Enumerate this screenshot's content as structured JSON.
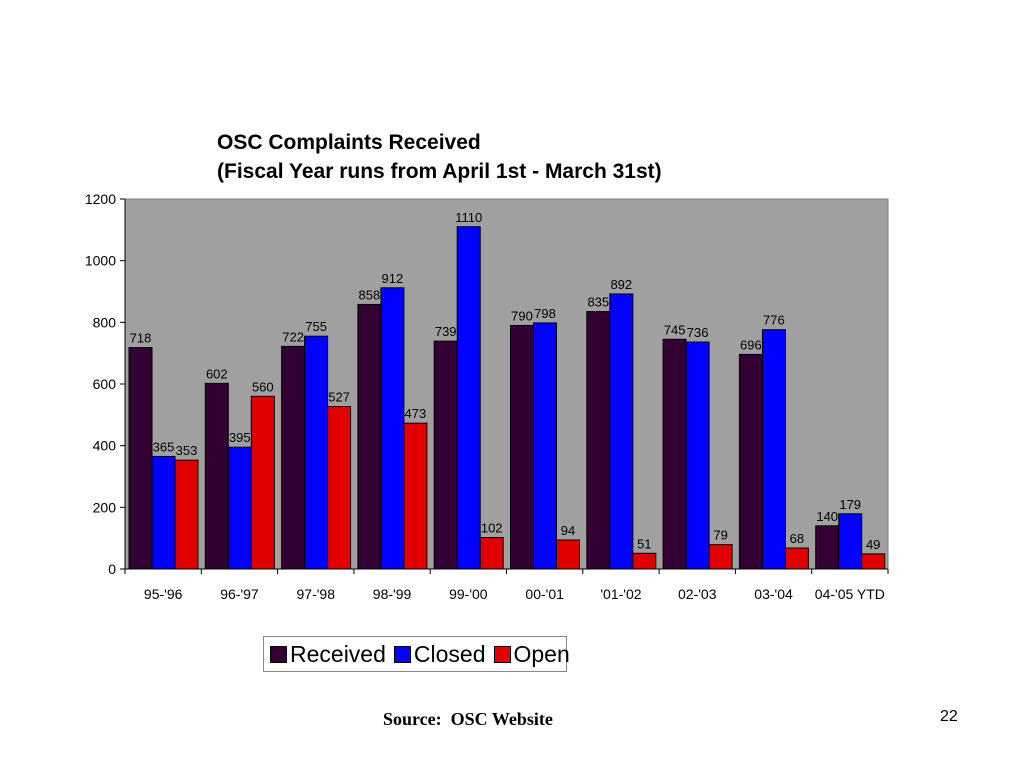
{
  "slide": {
    "title_line1": "OSC Complaints Received",
    "title_line2": "(Fiscal Year runs from April 1st - March 31st)",
    "source": "Source:  OSC Website",
    "page_number": "22"
  },
  "chart_data": {
    "type": "bar",
    "title": "",
    "xlabel": "",
    "ylabel": "",
    "ylim": [
      0,
      1200
    ],
    "yticks": [
      0,
      200,
      400,
      600,
      800,
      1000,
      1200
    ],
    "grid": false,
    "legend_position": "bottom",
    "categories": [
      "95-'96",
      "96-'97",
      "97-'98",
      "98-'99",
      "99-'00",
      "00-'01",
      "'01-'02",
      "02-'03",
      "03-'04",
      "04-'05 YTD"
    ],
    "series": [
      {
        "name": "Received",
        "color": "#330033",
        "values": [
          718,
          602,
          722,
          858,
          739,
          790,
          835,
          745,
          696,
          140
        ]
      },
      {
        "name": "Closed",
        "color": "#0000ff",
        "values": [
          365,
          395,
          755,
          912,
          1110,
          798,
          892,
          736,
          776,
          179
        ]
      },
      {
        "name": "Open",
        "color": "#e00000",
        "values": [
          353,
          560,
          527,
          473,
          102,
          94,
          51,
          79,
          68,
          49
        ]
      }
    ],
    "plot_background": "#a0a0a0"
  }
}
